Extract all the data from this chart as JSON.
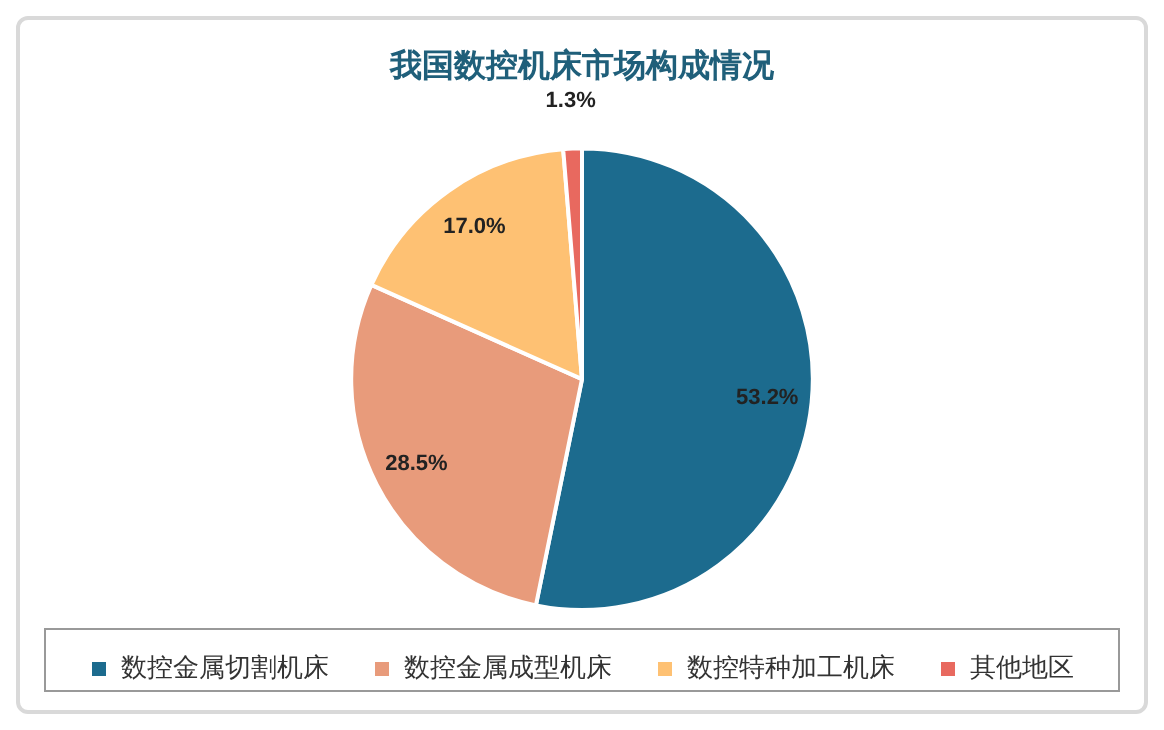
{
  "chart_data": {
    "type": "pie",
    "title": "我国数控机床市场构成情况",
    "categories": [
      "数控金属切割机床",
      "数控金属成型机床",
      "数控特种加工机床",
      "其他地区"
    ],
    "values": [
      53.2,
      28.5,
      17.0,
      1.3
    ],
    "value_labels": [
      "53.2%",
      "28.5%",
      "17.0%",
      "1.3%"
    ],
    "colors": [
      "#1c6b8e",
      "#e89b7b",
      "#fec173",
      "#e8695f"
    ],
    "legend": "bottom"
  }
}
